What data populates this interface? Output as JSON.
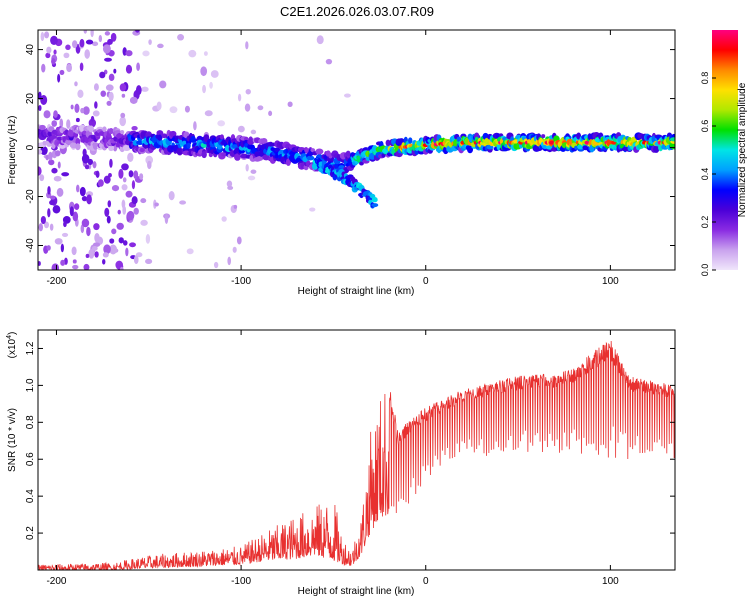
{
  "title": "C2E1.2026.026.03.07.R09",
  "chart_data": [
    {
      "type": "heatmap",
      "xlabel": "Height of straight line (km)",
      "ylabel": "Frequency (Hz)",
      "xlim": [
        -210,
        135
      ],
      "ylim": [
        -50,
        48
      ],
      "xticks": [
        -200,
        -100,
        0,
        100
      ],
      "yticks": [
        -40,
        -20,
        0,
        20,
        40
      ],
      "colorbar": {
        "label": "Normalized spectral amplitude",
        "range": [
          0,
          1
        ],
        "ticks": [
          0.0,
          0.2,
          0.4,
          0.6,
          0.8
        ],
        "colors": [
          "#f0e6fb",
          "#c9a2ee",
          "#8a2be2",
          "#4b00d8",
          "#0000ff",
          "#00a0ff",
          "#00e5e5",
          "#00e000",
          "#b0e800",
          "#ffe000",
          "#ff8800",
          "#ff0000",
          "#ff0080"
        ]
      },
      "ridge": {
        "description": "spectral ridge frequency vs height",
        "x": [
          -210,
          -180,
          -160,
          -140,
          -120,
          -100,
          -80,
          -60,
          -45,
          -35,
          -25,
          -15,
          0,
          20,
          60,
          100,
          135
        ],
        "y": [
          5,
          4,
          3,
          2,
          1,
          0,
          -2,
          -5,
          -7,
          -4,
          -1,
          0,
          1,
          2,
          2,
          2,
          2
        ]
      },
      "secondary_ridge": {
        "x": [
          -60,
          -50,
          -40,
          -33,
          -27
        ],
        "y": [
          -6,
          -10,
          -14,
          -19,
          -23
        ]
      }
    },
    {
      "type": "line",
      "xlabel": "Height of straight line (km)",
      "ylabel": "SNR (10 * v/v)",
      "yscale_label": "(x10",
      "yscale_exp": "4",
      "yscale_close": ")",
      "xlim": [
        -210,
        135
      ],
      "ylim": [
        0,
        1.3
      ],
      "xticks": [
        -200,
        -100,
        0,
        100
      ],
      "yticks": [
        0.2,
        0.4,
        0.6,
        0.8,
        1.0,
        1.2
      ],
      "ytick_labels": [
        "0.2",
        "0.4",
        "0.6",
        "0.8",
        "1.0",
        "1.2"
      ],
      "series_color": "#e8302f",
      "envelope": {
        "x": [
          -210,
          -170,
          -150,
          -120,
          -100,
          -85,
          -70,
          -60,
          -50,
          -45,
          -40,
          -35,
          -30,
          -25,
          -20,
          -15,
          -10,
          0,
          10,
          20,
          30,
          40,
          50,
          60,
          70,
          80,
          90,
          100,
          110,
          120,
          135
        ],
        "upper": [
          0.03,
          0.04,
          0.08,
          0.11,
          0.13,
          0.22,
          0.3,
          0.35,
          0.4,
          0.18,
          0.12,
          0.3,
          0.75,
          0.95,
          1.05,
          0.75,
          0.8,
          0.88,
          0.93,
          0.98,
          1.0,
          1.03,
          1.05,
          1.07,
          1.06,
          1.1,
          1.18,
          1.25,
          1.05,
          1.03,
          1.0
        ],
        "lower": [
          0.0,
          0.0,
          0.01,
          0.02,
          0.03,
          0.05,
          0.06,
          0.08,
          0.05,
          0.03,
          0.02,
          0.08,
          0.2,
          0.28,
          0.3,
          0.3,
          0.35,
          0.45,
          0.55,
          0.6,
          0.6,
          0.62,
          0.62,
          0.63,
          0.64,
          0.62,
          0.6,
          0.6,
          0.6,
          0.6,
          0.6
        ]
      }
    }
  ]
}
